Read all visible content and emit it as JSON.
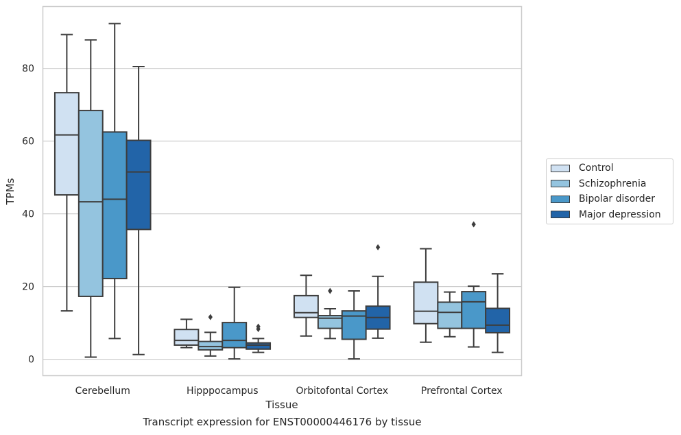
{
  "chart_data": {
    "type": "box",
    "title": "",
    "caption": "Transcript expression for ENST00000446176 by tissue",
    "xlabel": "Tissue",
    "ylabel": "TPMs",
    "ylim": [
      -4.5,
      97
    ],
    "yticks": [
      0,
      20,
      40,
      60,
      80
    ],
    "grid": "horizontal",
    "legend_position": "right",
    "categories": [
      "Cerebellum",
      "Hipppocampus",
      "Orbitofontal Cortex",
      "Prefrontal Cortex"
    ],
    "series": [
      {
        "name": "Control",
        "color": "#d0e1f2",
        "boxes": [
          {
            "whisker_low": 13.3,
            "q1": 45.2,
            "median": 61.7,
            "q3": 73.3,
            "whisker_high": 89.3,
            "outliers": []
          },
          {
            "whisker_low": 3.2,
            "q1": 3.9,
            "median": 5.2,
            "q3": 8.2,
            "whisker_high": 11.0,
            "outliers": []
          },
          {
            "whisker_low": 6.4,
            "q1": 11.5,
            "median": 12.8,
            "q3": 17.5,
            "whisker_high": 23.1,
            "outliers": []
          },
          {
            "whisker_low": 4.7,
            "q1": 9.8,
            "median": 13.2,
            "q3": 21.2,
            "whisker_high": 30.4,
            "outliers": []
          }
        ]
      },
      {
        "name": "Schizophrenia",
        "color": "#94c4df",
        "boxes": [
          {
            "whisker_low": 0.6,
            "q1": 17.3,
            "median": 43.3,
            "q3": 68.4,
            "whisker_high": 87.8,
            "outliers": []
          },
          {
            "whisker_low": 0.9,
            "q1": 2.6,
            "median": 3.5,
            "q3": 4.9,
            "whisker_high": 7.4,
            "outliers": [
              11.6
            ]
          },
          {
            "whisker_low": 5.7,
            "q1": 8.5,
            "median": 11.3,
            "q3": 12.0,
            "whisker_high": 13.9,
            "outliers": [
              18.8
            ]
          },
          {
            "whisker_low": 6.2,
            "q1": 8.5,
            "median": 12.9,
            "q3": 15.7,
            "whisker_high": 18.5,
            "outliers": []
          }
        ]
      },
      {
        "name": "Bipolar disorder",
        "color": "#4a98c9",
        "boxes": [
          {
            "whisker_low": 5.7,
            "q1": 22.2,
            "median": 44.0,
            "q3": 62.5,
            "whisker_high": 92.3,
            "outliers": []
          },
          {
            "whisker_low": 0.1,
            "q1": 3.2,
            "median": 5.2,
            "q3": 10.1,
            "whisker_high": 19.8,
            "outliers": []
          },
          {
            "whisker_low": 0.1,
            "q1": 5.5,
            "median": 11.9,
            "q3": 13.3,
            "whisker_high": 18.8,
            "outliers": []
          },
          {
            "whisker_low": 3.4,
            "q1": 8.5,
            "median": 15.8,
            "q3": 18.6,
            "whisker_high": 20.1,
            "outliers": [
              37.1
            ]
          }
        ]
      },
      {
        "name": "Major depression",
        "color": "#2264a8",
        "boxes": [
          {
            "whisker_low": 1.3,
            "q1": 35.7,
            "median": 51.5,
            "q3": 60.2,
            "whisker_high": 80.5,
            "outliers": []
          },
          {
            "whisker_low": 1.9,
            "q1": 2.8,
            "median": 3.9,
            "q3": 4.5,
            "whisker_high": 5.7,
            "outliers": [
              8.3,
              9.0
            ]
          },
          {
            "whisker_low": 5.8,
            "q1": 8.3,
            "median": 11.5,
            "q3": 14.6,
            "whisker_high": 22.8,
            "outliers": [
              30.8
            ]
          },
          {
            "whisker_low": 1.9,
            "q1": 7.3,
            "median": 9.4,
            "q3": 14.0,
            "whisker_high": 23.5,
            "outliers": []
          }
        ]
      }
    ]
  }
}
